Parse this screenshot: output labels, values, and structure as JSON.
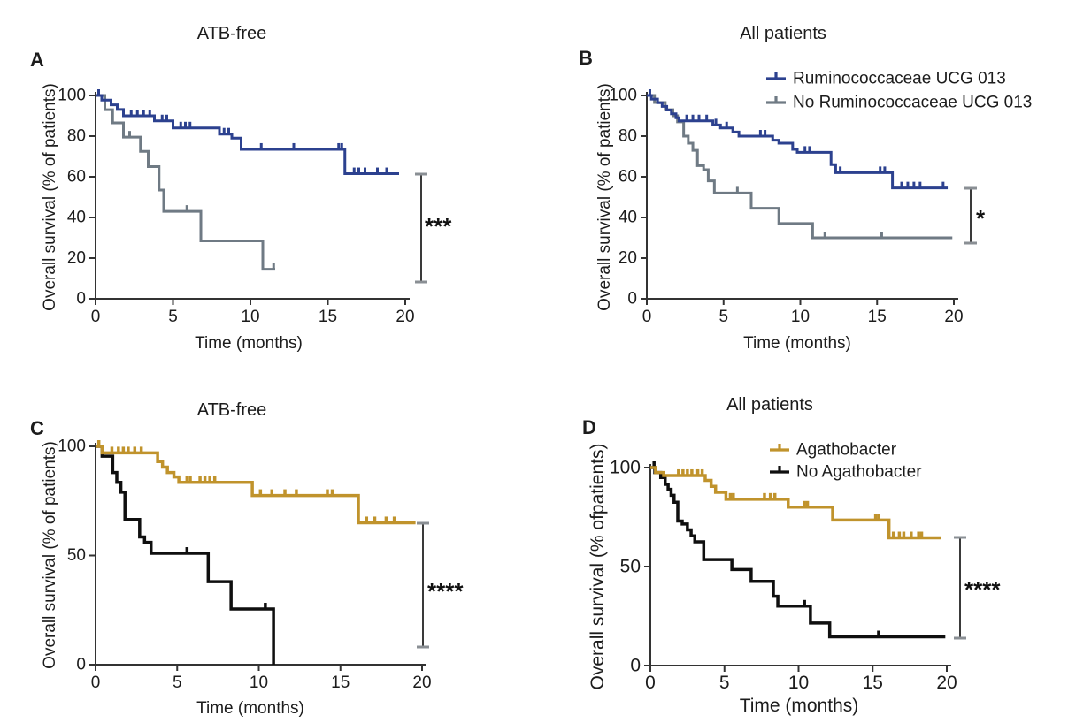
{
  "figure": {
    "description": "Kaplan-Meier overall survival curves, four panels",
    "colors": {
      "blue": "#2c418f",
      "gray": "#6f7a84",
      "gold": "#c0932c",
      "black": "#0f0f0f",
      "text": "#1c1c1c",
      "axis": "#333333",
      "bracket_cap": "#8a8f94"
    }
  },
  "chart_data": [
    {
      "type": "line",
      "subtype": "kaplan_meier_step",
      "panel_label": "A",
      "title": "ATB-free",
      "xlabel": "Time (months)",
      "ylabel": "Overall survival (% of patients)",
      "xlim": [
        0,
        20
      ],
      "ylim": [
        0,
        100
      ],
      "x_ticks": [
        0,
        5,
        10,
        15,
        20
      ],
      "y_ticks": [
        0,
        20,
        40,
        60,
        80,
        100
      ],
      "grid": false,
      "legend_shown": false,
      "significance": "***",
      "series": [
        {
          "name": "Ruminococcaceae UCG 013",
          "color": "#2c418f",
          "steps": [
            [
              0,
              100
            ],
            [
              0.4,
              97.7
            ],
            [
              1.0,
              95.4
            ],
            [
              1.4,
              93.1
            ],
            [
              1.8,
              90
            ],
            [
              3.8,
              87.5
            ],
            [
              5.0,
              84
            ],
            [
              8.0,
              81
            ],
            [
              8.8,
              79
            ],
            [
              9.4,
              73.5
            ],
            [
              16.1,
              61.5
            ]
          ],
          "end": 19.6,
          "censors": [
            [
              0.2,
              100
            ],
            [
              2.3,
              90
            ],
            [
              2.7,
              90
            ],
            [
              3.1,
              90
            ],
            [
              3.5,
              90
            ],
            [
              4.3,
              87.5
            ],
            [
              4.6,
              87.5
            ],
            [
              5.5,
              84
            ],
            [
              5.8,
              84
            ],
            [
              6.1,
              84
            ],
            [
              8.3,
              81
            ],
            [
              8.6,
              81
            ],
            [
              10.7,
              73.5
            ],
            [
              12.8,
              73.5
            ],
            [
              15.7,
              73.5
            ],
            [
              15.9,
              73.5
            ],
            [
              16.7,
              61.5
            ],
            [
              17.0,
              61.5
            ],
            [
              17.4,
              61.5
            ],
            [
              18.2,
              61.5
            ],
            [
              18.8,
              61.5
            ]
          ]
        },
        {
          "name": "No Ruminococcaceae UCG 013",
          "color": "#6f7a84",
          "steps": [
            [
              0,
              100
            ],
            [
              0.6,
              93
            ],
            [
              1.1,
              86.5
            ],
            [
              1.8,
              79.5
            ],
            [
              2.9,
              72.5
            ],
            [
              3.4,
              65
            ],
            [
              4.1,
              53.5
            ],
            [
              4.4,
              43
            ],
            [
              6.8,
              28.5
            ],
            [
              10.8,
              14.5
            ]
          ],
          "end": 11.6,
          "censors": [
            [
              2.2,
              79.5
            ],
            [
              5.9,
              43
            ],
            [
              11.5,
              14.5
            ]
          ]
        }
      ]
    },
    {
      "type": "line",
      "subtype": "kaplan_meier_step",
      "panel_label": "B",
      "title": "All patients",
      "xlabel": "Time (months)",
      "ylabel": "Overall survival (% of patients)",
      "xlim": [
        0,
        20
      ],
      "ylim": [
        0,
        100
      ],
      "x_ticks": [
        0,
        5,
        10,
        15,
        20
      ],
      "y_ticks": [
        0,
        20,
        40,
        60,
        80,
        100
      ],
      "grid": false,
      "legend_shown": true,
      "significance": "*",
      "series": [
        {
          "name": "Ruminococcaceae UCG 013",
          "color": "#2c418f",
          "steps": [
            [
              0,
              100
            ],
            [
              0.3,
              98.2
            ],
            [
              0.7,
              96.4
            ],
            [
              1.0,
              94.6
            ],
            [
              1.3,
              92.8
            ],
            [
              1.6,
              91
            ],
            [
              1.9,
              89
            ],
            [
              2.1,
              87.5
            ],
            [
              4.3,
              85.5
            ],
            [
              4.8,
              84
            ],
            [
              5.6,
              82
            ],
            [
              6.0,
              80
            ],
            [
              8.2,
              78
            ],
            [
              8.6,
              76.5
            ],
            [
              9.5,
              73.5
            ],
            [
              9.8,
              72
            ],
            [
              12.0,
              66
            ],
            [
              12.3,
              62
            ],
            [
              16.0,
              54.5
            ]
          ],
          "end": 19.6,
          "censors": [
            [
              0.2,
              100
            ],
            [
              2.6,
              87.5
            ],
            [
              3.0,
              87.5
            ],
            [
              3.4,
              87.5
            ],
            [
              3.9,
              87.5
            ],
            [
              4.5,
              85.5
            ],
            [
              5.2,
              84
            ],
            [
              7.4,
              80
            ],
            [
              7.7,
              80
            ],
            [
              10.3,
              72
            ],
            [
              10.6,
              72
            ],
            [
              12.6,
              62
            ],
            [
              15.2,
              62
            ],
            [
              15.5,
              62
            ],
            [
              16.6,
              54.5
            ],
            [
              17.0,
              54.5
            ],
            [
              17.4,
              54.5
            ],
            [
              17.8,
              54.5
            ],
            [
              19.3,
              54.5
            ]
          ]
        },
        {
          "name": "No Ruminococcaceae UCG 013",
          "color": "#6f7a84",
          "steps": [
            [
              0,
              100
            ],
            [
              0.5,
              96.5
            ],
            [
              1.2,
              93
            ],
            [
              1.7,
              90
            ],
            [
              2.0,
              87
            ],
            [
              2.4,
              80
            ],
            [
              2.7,
              76.5
            ],
            [
              3.0,
              73
            ],
            [
              3.3,
              65.5
            ],
            [
              3.7,
              63.5
            ],
            [
              4.0,
              58
            ],
            [
              4.4,
              52
            ],
            [
              6.8,
              44.5
            ],
            [
              8.6,
              37
            ],
            [
              10.8,
              30
            ]
          ],
          "end": 19.9,
          "censors": [
            [
              5.9,
              52
            ],
            [
              11.6,
              30
            ],
            [
              15.3,
              30
            ]
          ]
        }
      ]
    },
    {
      "type": "line",
      "subtype": "kaplan_meier_step",
      "panel_label": "C",
      "title": "ATB-free",
      "xlabel": "Time (months)",
      "ylabel": "Overall survival (% of patients)",
      "xlim": [
        0,
        20
      ],
      "ylim": [
        0,
        100
      ],
      "x_ticks": [
        0,
        5,
        10,
        15,
        20
      ],
      "y_ticks": [
        0,
        50,
        100
      ],
      "grid": false,
      "legend_shown": false,
      "significance": "****",
      "series": [
        {
          "name": "Agathobacter",
          "color": "#c0932c",
          "steps": [
            [
              0,
              100
            ],
            [
              0.4,
              97
            ],
            [
              3.8,
              93
            ],
            [
              4.1,
              90.5
            ],
            [
              4.4,
              88
            ],
            [
              4.8,
              86
            ],
            [
              5.1,
              83.5
            ],
            [
              9.6,
              77.5
            ],
            [
              16.1,
              65
            ]
          ],
          "end": 19.6,
          "censors": [
            [
              0.2,
              100
            ],
            [
              1.0,
              97
            ],
            [
              1.4,
              97
            ],
            [
              1.7,
              97
            ],
            [
              2.0,
              97
            ],
            [
              2.4,
              97
            ],
            [
              2.8,
              97
            ],
            [
              5.6,
              83.5
            ],
            [
              5.8,
              83.5
            ],
            [
              6.4,
              83.5
            ],
            [
              6.7,
              83.5
            ],
            [
              7.0,
              83.5
            ],
            [
              7.3,
              83.5
            ],
            [
              10.1,
              77.5
            ],
            [
              10.8,
              77.5
            ],
            [
              11.6,
              77.5
            ],
            [
              12.3,
              77.5
            ],
            [
              14.2,
              77.5
            ],
            [
              14.5,
              77.5
            ],
            [
              16.6,
              65
            ],
            [
              17.1,
              65
            ],
            [
              17.8,
              65
            ],
            [
              18.3,
              65
            ]
          ]
        },
        {
          "name": "No Agathobacter",
          "color": "#0f0f0f",
          "steps": [
            [
              0,
              100
            ],
            [
              0.4,
              95.5
            ],
            [
              1.05,
              88
            ],
            [
              1.3,
              83.5
            ],
            [
              1.55,
              79
            ],
            [
              1.8,
              66.5
            ],
            [
              2.7,
              58.5
            ],
            [
              3.0,
              56
            ],
            [
              3.4,
              51
            ],
            [
              6.9,
              38
            ],
            [
              8.3,
              25.5
            ],
            [
              10.9,
              0
            ]
          ],
          "end": 10.9,
          "censors": [
            [
              5.6,
              51
            ],
            [
              10.4,
              25.5
            ]
          ]
        }
      ]
    },
    {
      "type": "line",
      "subtype": "kaplan_meier_step",
      "panel_label": "D",
      "title": "All patients",
      "xlabel": "Time (months)",
      "ylabel": "Overall survival (% ofpatients)",
      "xlim": [
        0,
        20
      ],
      "ylim": [
        0,
        100
      ],
      "x_ticks": [
        0,
        5,
        10,
        15,
        20
      ],
      "y_ticks": [
        0,
        50,
        100
      ],
      "grid": false,
      "legend_shown": true,
      "significance": "****",
      "series": [
        {
          "name": "Agathobacter",
          "color": "#c0932c",
          "steps": [
            [
              0,
              100
            ],
            [
              0.35,
              97.5
            ],
            [
              0.9,
              96
            ],
            [
              3.7,
              93.5
            ],
            [
              4.1,
              90.5
            ],
            [
              4.4,
              87.5
            ],
            [
              5.1,
              84
            ],
            [
              9.3,
              80
            ],
            [
              12.3,
              73.5
            ],
            [
              16.1,
              64.5
            ]
          ],
          "end": 19.6,
          "censors": [
            [
              1.9,
              96
            ],
            [
              2.2,
              96
            ],
            [
              2.5,
              96
            ],
            [
              2.8,
              96
            ],
            [
              3.2,
              96
            ],
            [
              3.5,
              96
            ],
            [
              5.4,
              84
            ],
            [
              5.6,
              84
            ],
            [
              7.7,
              84
            ],
            [
              8.1,
              84
            ],
            [
              8.4,
              84
            ],
            [
              10.4,
              80
            ],
            [
              10.6,
              80
            ],
            [
              15.2,
              73.5
            ],
            [
              15.4,
              73.5
            ],
            [
              16.4,
              64.5
            ],
            [
              16.8,
              64.5
            ],
            [
              17.1,
              64.5
            ],
            [
              17.6,
              64.5
            ],
            [
              18.1,
              64.5
            ],
            [
              18.3,
              64.5
            ]
          ]
        },
        {
          "name": "No Agathobacter",
          "color": "#0f0f0f",
          "steps": [
            [
              0,
              100
            ],
            [
              0.3,
              97.5
            ],
            [
              0.7,
              95
            ],
            [
              1.0,
              91.5
            ],
            [
              1.2,
              89
            ],
            [
              1.4,
              86
            ],
            [
              1.6,
              82.5
            ],
            [
              1.85,
              73
            ],
            [
              2.15,
              71.5
            ],
            [
              2.5,
              68.5
            ],
            [
              2.75,
              65.5
            ],
            [
              3.0,
              62.5
            ],
            [
              3.6,
              53.5
            ],
            [
              5.5,
              48.5
            ],
            [
              6.8,
              42.5
            ],
            [
              8.3,
              35
            ],
            [
              8.6,
              30
            ],
            [
              10.8,
              21.5
            ],
            [
              12.1,
              14.5
            ]
          ],
          "end": 19.9,
          "censors": [
            [
              0.25,
              100
            ],
            [
              10.4,
              30
            ],
            [
              15.4,
              14.5
            ]
          ]
        }
      ]
    }
  ]
}
